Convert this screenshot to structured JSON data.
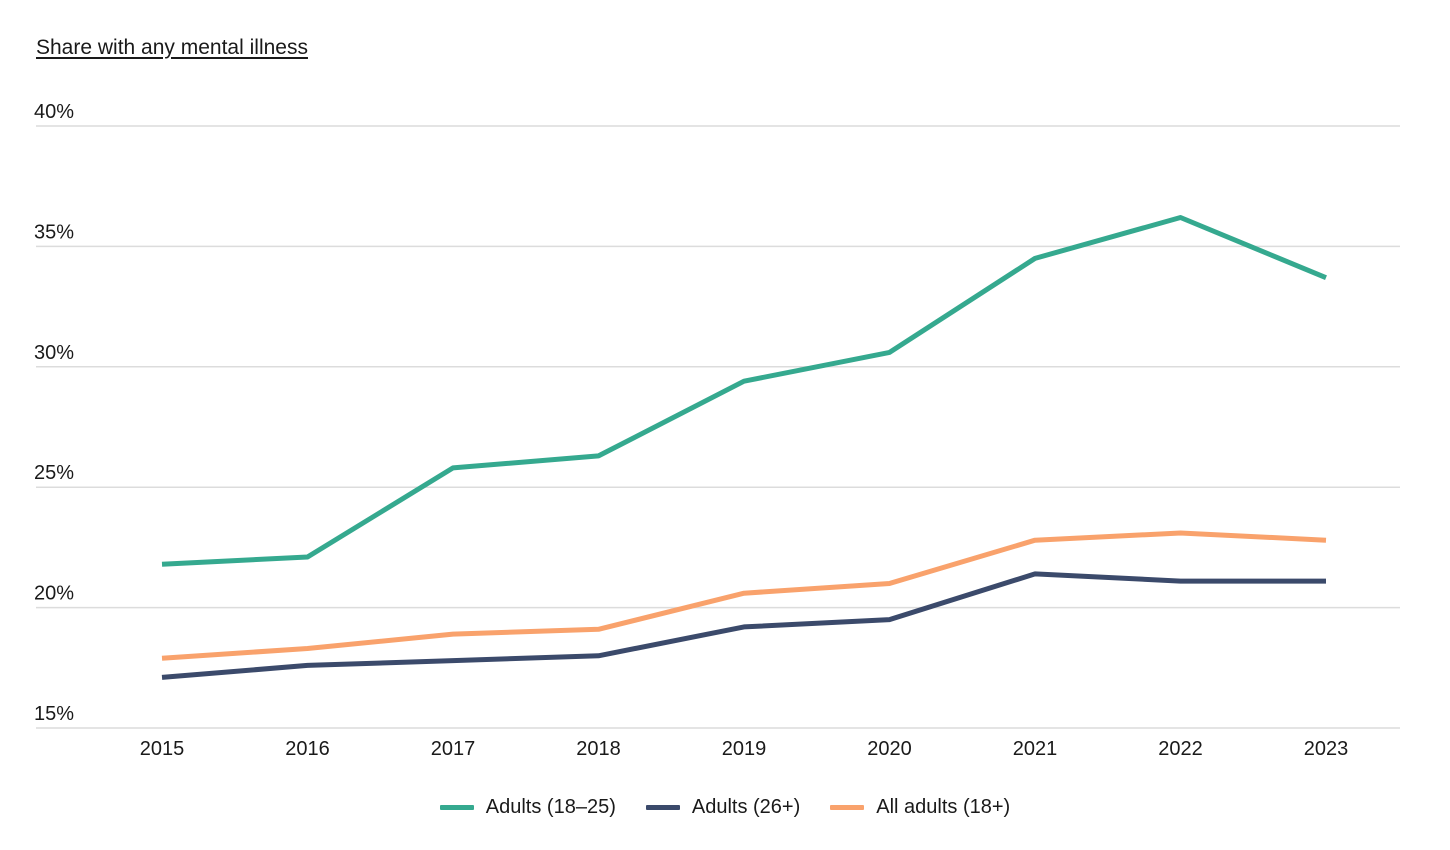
{
  "chart_data": {
    "type": "line",
    "title": "Share with any mental illness",
    "xlabel": "",
    "ylabel": "",
    "x": [
      "2015",
      "2016",
      "2017",
      "2018",
      "2019",
      "2020",
      "2021",
      "2022",
      "2023"
    ],
    "yticks": [
      "15%",
      "20%",
      "25%",
      "30%",
      "35%",
      "40%"
    ],
    "ylim": [
      15,
      40
    ],
    "grid": true,
    "legend_position": "bottom",
    "series": [
      {
        "name": "Adults (18–25)",
        "color": "#35a98f",
        "values": [
          21.8,
          22.1,
          25.8,
          26.3,
          29.4,
          30.6,
          34.5,
          36.2,
          33.7
        ]
      },
      {
        "name": "Adults (26+)",
        "color": "#3b4a6b",
        "values": [
          17.1,
          17.6,
          17.8,
          18.0,
          19.2,
          19.5,
          21.4,
          21.1,
          21.1
        ]
      },
      {
        "name": "All adults (18+)",
        "color": "#f9a26c",
        "values": [
          17.9,
          18.3,
          18.9,
          19.1,
          20.6,
          21.0,
          22.8,
          23.1,
          22.8
        ]
      }
    ]
  }
}
